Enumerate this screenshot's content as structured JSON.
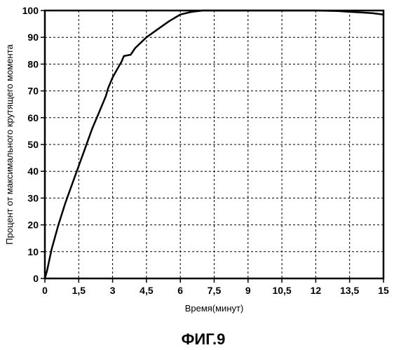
{
  "chart_data": {
    "type": "line",
    "title": "",
    "caption": "ФИГ.9",
    "xlabel": "Время(минут)",
    "ylabel": "Процент от максимального крутящего момента",
    "xlim": [
      0,
      15
    ],
    "ylim": [
      0,
      100
    ],
    "grid": true,
    "x_ticks": [
      0,
      1.5,
      3,
      4.5,
      6,
      7.5,
      9,
      10.5,
      12,
      13.5,
      15
    ],
    "x_tick_labels": [
      "0",
      "1,5",
      "3",
      "4,5",
      "6",
      "7,5",
      "9",
      "10,5",
      "12",
      "13,5",
      "15"
    ],
    "y_ticks": [
      0,
      10,
      20,
      30,
      40,
      50,
      60,
      70,
      80,
      90,
      100
    ],
    "y_tick_labels": [
      "0",
      "10",
      "20",
      "30",
      "40",
      "50",
      "60",
      "70",
      "80",
      "90",
      "100"
    ],
    "series": [
      {
        "x": [
          0,
          0.1,
          0.3,
          0.6,
          0.9,
          1.2,
          1.5,
          1.8,
          2.1,
          2.4,
          2.7,
          2.8,
          3.0,
          3.2,
          3.4,
          3.5,
          3.8,
          4.0,
          4.5,
          5.0,
          5.5,
          6.0,
          6.5,
          7.0,
          8.0,
          9.0,
          10.0,
          11.0,
          12.0,
          13.0,
          13.5,
          14.0,
          14.5,
          15.0
        ],
        "y": [
          0,
          3,
          11,
          20,
          28,
          35,
          42,
          49,
          56,
          62,
          68,
          71,
          75,
          78,
          81,
          83,
          83.5,
          86,
          90,
          93,
          96,
          98.5,
          99.5,
          100,
          100,
          100,
          100,
          100,
          100,
          99.8,
          99.5,
          99.3,
          99,
          98.5
        ]
      }
    ]
  }
}
